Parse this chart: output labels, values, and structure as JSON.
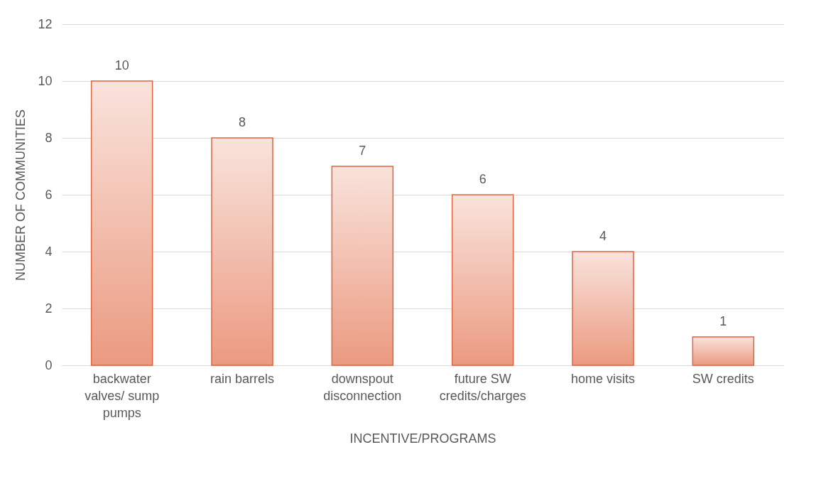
{
  "chart_data": {
    "type": "bar",
    "xlabel": "INCENTIVE/PROGRAMS",
    "ylabel": "NUMBER OF COMMUNITIES",
    "categories": [
      "backwater valves/ sump pumps",
      "rain barrels",
      "downspout disconnection",
      "future SW credits/charges",
      "home visits",
      "SW credits"
    ],
    "values": [
      10,
      8,
      7,
      6,
      4,
      1
    ],
    "color": "#e0643c",
    "ylim": [
      0,
      12
    ],
    "yticks": [
      0,
      2,
      4,
      6,
      8,
      10,
      12
    ],
    "grid": "y",
    "data_labels": true
  }
}
